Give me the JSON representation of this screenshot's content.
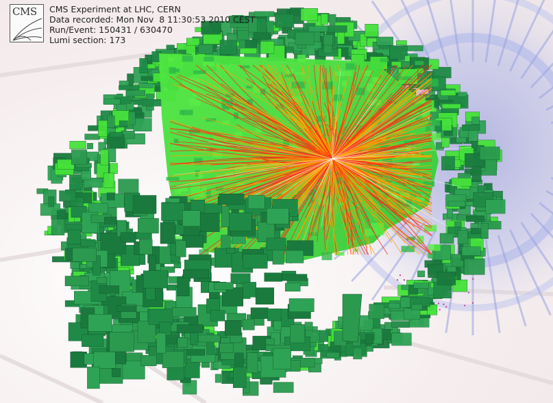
{
  "event_info": {
    "logo_text": "CMS",
    "experiment": "CMS Experiment at LHC, CERN",
    "data_recorded": "Data recorded: Mon Nov  8 11:30:53 2010 CEST",
    "run_event": "Run/Event: 150431 / 630470",
    "lumi_section": "Lumi section: 173"
  },
  "colors": {
    "background": "#f4eeee",
    "calorimeter_dark": "#1f8a46",
    "calorimeter_mid": "#2fa355",
    "calorimeter_light": "#45e23a",
    "track_orange": "#ffa200",
    "track_red": "#ff2a16",
    "muon_chambers": "#aab2e8"
  }
}
